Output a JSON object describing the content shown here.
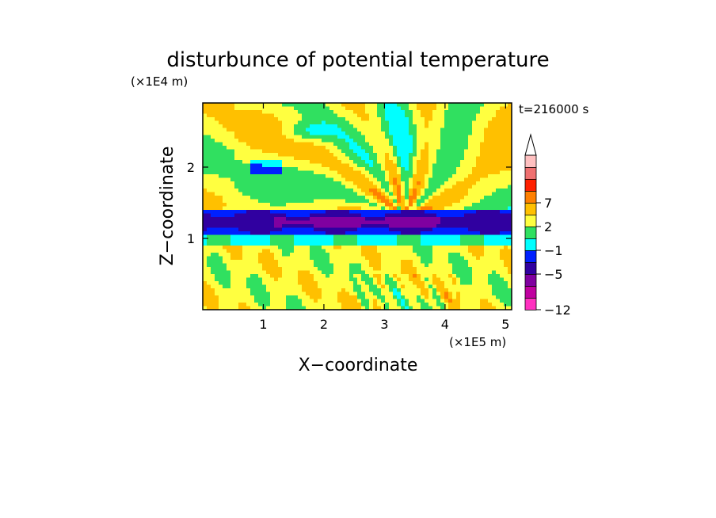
{
  "chart_data": {
    "type": "heatmap",
    "title": "disturbunce of potential temperature",
    "xlabel": "X−coordinate",
    "ylabel": "Z−coordinate",
    "x_unit": "(×1E5 m)",
    "y_unit": "(×1E4 m)",
    "time_label": "t=216000 s",
    "xlim": [
      0,
      5.1
    ],
    "ylim": [
      0,
      2.9
    ],
    "x_ticks": [
      1,
      2,
      3,
      4,
      5
    ],
    "y_ticks": [
      1,
      2
    ],
    "x_tick_labels": [
      "1",
      "2",
      "3",
      "4",
      "5"
    ],
    "y_tick_labels": [
      "1",
      "2"
    ],
    "colorbar": {
      "tick_values": [
        7,
        2,
        -1,
        -5,
        -12
      ],
      "tick_labels": [
        "7",
        "2",
        "−1",
        "−5",
        "−12"
      ],
      "colors": [
        "#ff30c0",
        "#c000a0",
        "#8000a0",
        "#3000a0",
        "#0020ff",
        "#00ffff",
        "#30e060",
        "#ffff40",
        "#ffc000",
        "#ff8000",
        "#ff2000",
        "#f07070",
        "#ffc0c0"
      ],
      "extend_max": true
    },
    "field_description_bands": [
      {
        "z_range": [
          0.0,
          0.35
        ],
        "dominant_value": 2
      },
      {
        "z_range": [
          0.35,
          0.9
        ],
        "dominant_value": 2
      },
      {
        "z_range": [
          0.9,
          1.05
        ],
        "dominant_value": -1
      },
      {
        "z_range": [
          1.05,
          1.4
        ],
        "dominant_value": -5
      },
      {
        "z_range": [
          1.4,
          2.0
        ],
        "dominant_value": 2
      },
      {
        "z_range": [
          2.0,
          2.9
        ],
        "dominant_value": 1
      }
    ]
  }
}
